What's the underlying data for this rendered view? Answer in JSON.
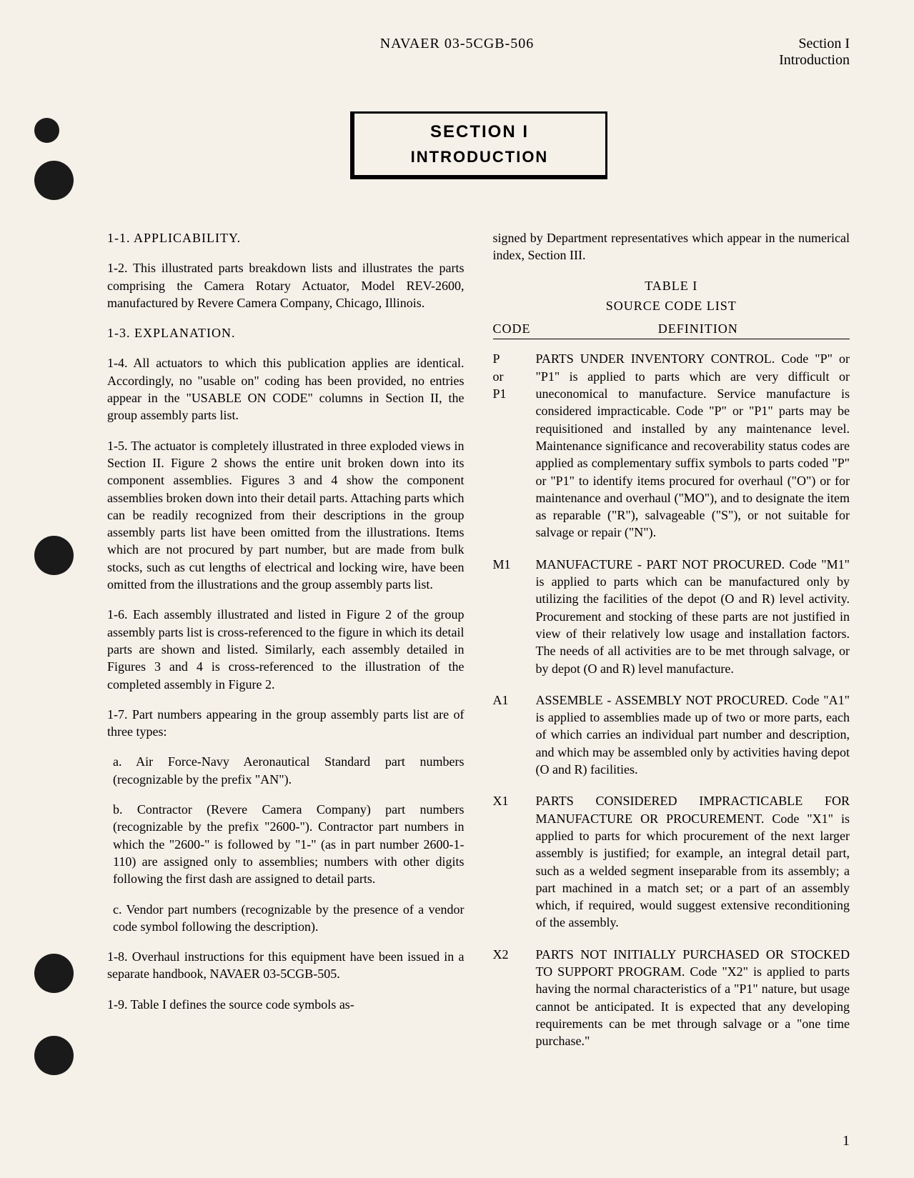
{
  "header": {
    "center": "NAVAER 03-5CGB-506",
    "right_line1": "Section I",
    "right_line2": "Introduction"
  },
  "section_box": {
    "title": "SECTION I",
    "subtitle": "INTRODUCTION"
  },
  "left_col": {
    "h1": "1-1. APPLICABILITY.",
    "p1": "1-2. This illustrated parts breakdown lists and illustrates the parts comprising the Camera Rotary Actuator, Model REV-2600, manufactured by Revere Camera Company, Chicago, Illinois.",
    "h2": "1-3. EXPLANATION.",
    "p2": "1-4. All actuators to which this publication applies are identical. Accordingly, no \"usable on\" coding has been provided, no entries appear in the \"USABLE ON CODE\" columns in Section II, the group assembly parts list.",
    "p3": "1-5. The actuator is completely illustrated in three exploded views in Section II. Figure 2 shows the entire unit broken down into its component assemblies. Figures 3 and 4 show the component assemblies broken down into their detail parts. Attaching parts which can be readily recognized from their descriptions in the group assembly parts list have been omitted from the illustrations. Items which are not procured by part number, but are made from bulk stocks, such as cut lengths of electrical and locking wire, have been omitted from the illustrations and the group assembly parts list.",
    "p4": "1-6. Each assembly illustrated and listed in Figure 2 of the group assembly parts list is cross-referenced to the figure in which its detail parts are shown and listed. Similarly, each assembly detailed in Figures 3 and 4 is cross-referenced to the illustration of the completed assembly in Figure 2.",
    "p5": "1-7. Part numbers appearing in the group assembly parts list are of three types:",
    "p5a": "a. Air Force-Navy Aeronautical Standard part numbers (recognizable by the prefix \"AN\").",
    "p5b": "b. Contractor (Revere Camera Company) part numbers (recognizable by the prefix \"2600-\"). Contractor part numbers in which the \"2600-\" is followed by \"1-\" (as in part number 2600-1-110) are assigned only to assemblies; numbers with other digits following the first dash are assigned to detail parts.",
    "p5c": "c. Vendor part numbers (recognizable by the presence of a vendor code symbol following the description).",
    "p6": "1-8. Overhaul instructions for this equipment have been issued in a separate handbook, NAVAER 03-5CGB-505.",
    "p7": "1-9. Table I defines the source code symbols as-"
  },
  "right_col": {
    "intro": "signed by Department representatives which appear in the numerical index, Section III.",
    "table_label": "TABLE I",
    "table_name": "SOURCE CODE LIST",
    "col_code": "CODE",
    "col_def": "DEFINITION",
    "rows": [
      {
        "codes": [
          "P",
          "or",
          "P1"
        ],
        "def": "PARTS UNDER INVENTORY CONTROL. Code \"P\" or \"P1\" is applied to parts which are very difficult or uneconomical to manufacture. Service manufacture is considered impracticable. Code \"P\" or \"P1\" parts may be requisitioned and installed by any maintenance level. Maintenance significance and recoverability status codes are applied as complementary suffix symbols to parts coded \"P\" or \"P1\" to identify items procured for overhaul (\"O\") or for maintenance and overhaul (\"MO\"), and to designate the item as reparable (\"R\"), salvageable (\"S\"), or not suitable for salvage or repair (\"N\")."
      },
      {
        "codes": [
          "M1"
        ],
        "def": "MANUFACTURE - PART NOT PROCURED. Code \"M1\" is applied to parts which can be manufactured only by utilizing the facilities of the depot (O and R) level activity. Procurement and stocking of these parts are not justified in view of their relatively low usage and installation factors. The needs of all activities are to be met through salvage, or by depot (O and R) level manufacture."
      },
      {
        "codes": [
          "A1"
        ],
        "def": "ASSEMBLE - ASSEMBLY NOT PROCURED. Code \"A1\" is applied to assemblies made up of two or more parts, each of which carries an individual part number and description, and which may be assembled only by activities having depot (O and R) facilities."
      },
      {
        "codes": [
          "X1"
        ],
        "def": "PARTS CONSIDERED IMPRACTICABLE FOR MANUFACTURE OR PROCUREMENT. Code \"X1\" is applied to parts for which procurement of the next larger assembly is justified; for example, an integral detail part, such as a welded segment inseparable from its assembly; a part machined in a match set; or a part of an assembly which, if required, would suggest extensive reconditioning of the assembly."
      },
      {
        "codes": [
          "X2"
        ],
        "def": "PARTS NOT INITIALLY PURCHASED OR STOCKED TO SUPPORT PROGRAM. Code \"X2\" is applied to parts having the normal characteristics of a \"P1\" nature, but usage cannot be anticipated. It is expected that any developing requirements can be met through salvage or a \"one time purchase.\""
      }
    ]
  },
  "page_number": "1"
}
